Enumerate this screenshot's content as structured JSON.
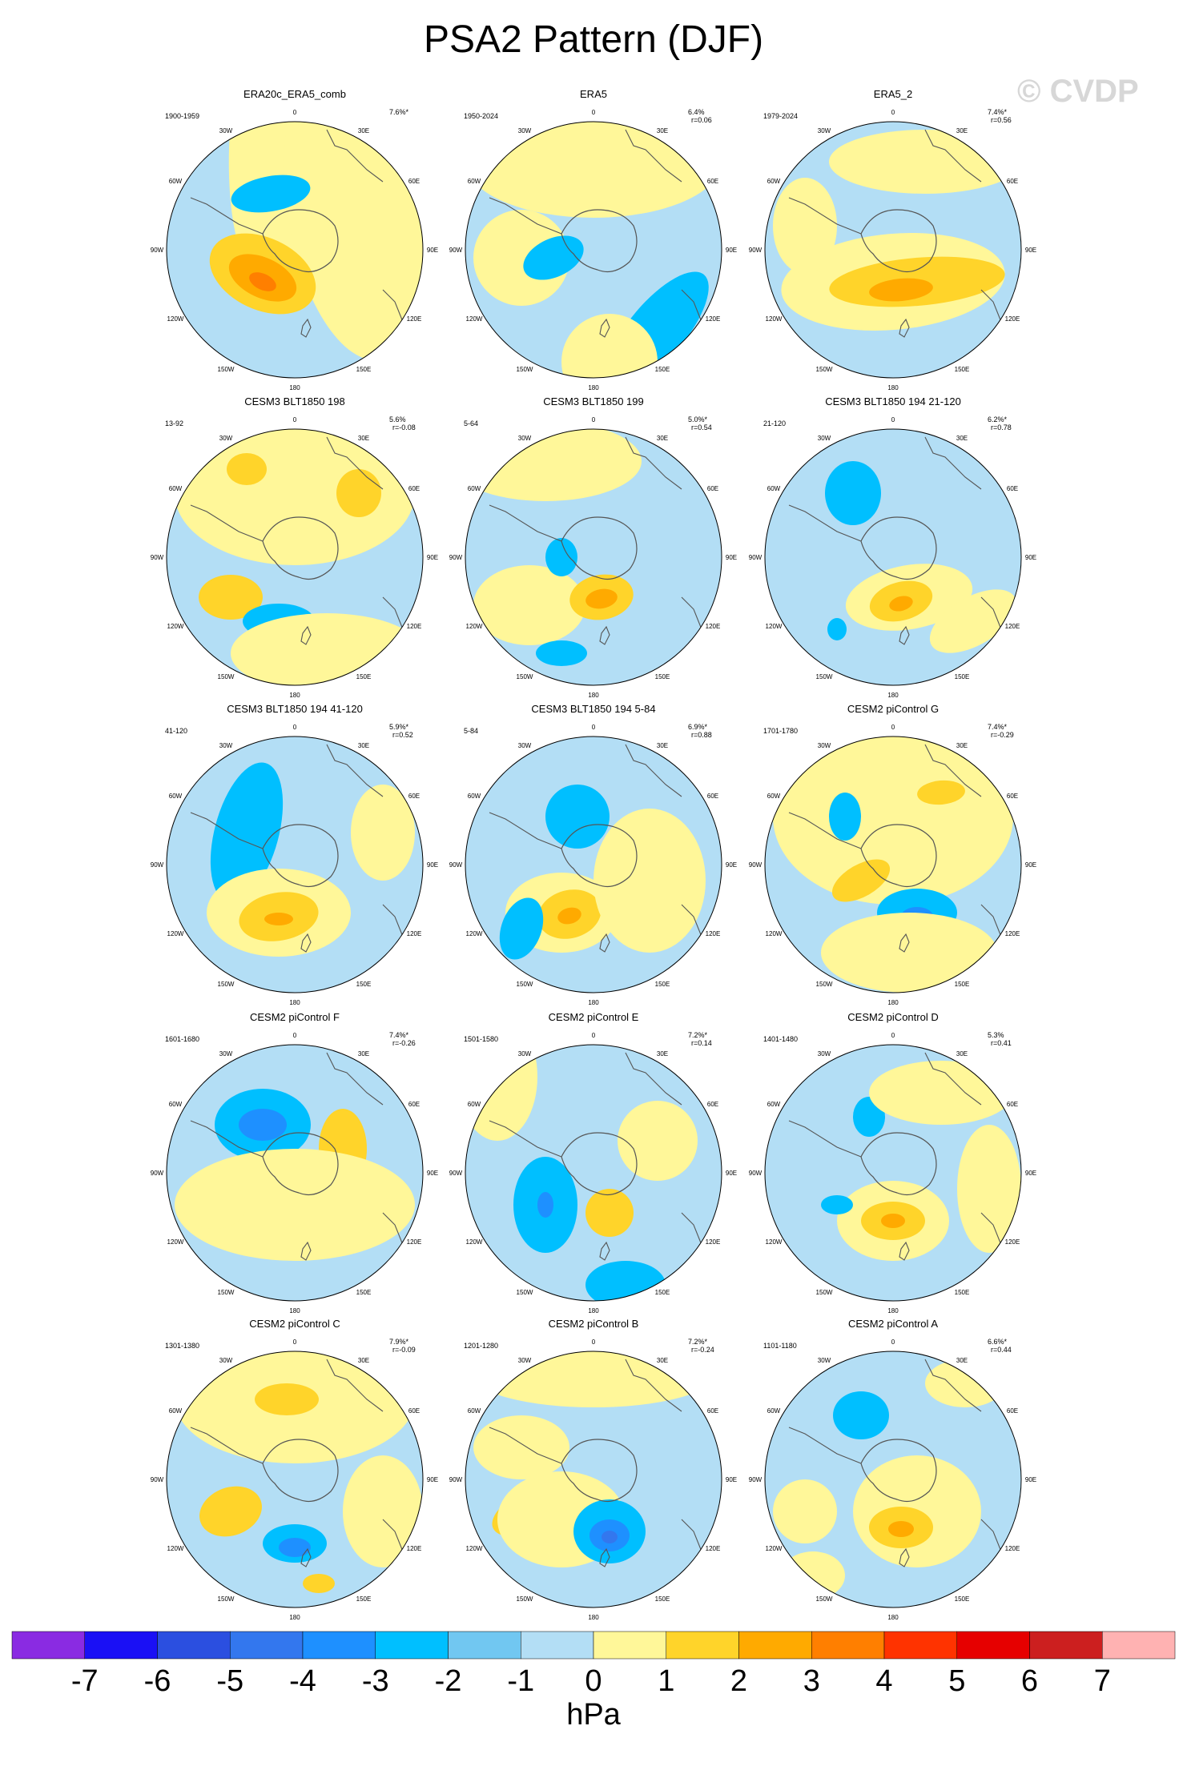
{
  "title": "PSA2 Pattern (DJF)",
  "watermark": "© CVDP",
  "colors": {
    "background_ocean": "#b3def5",
    "positive_weak": "#fff799",
    "coast": "#555555"
  },
  "longitude_labels": [
    "0",
    "30E",
    "60E",
    "90E",
    "120E",
    "150E",
    "180",
    "150W",
    "120W",
    "90W",
    "60W",
    "30W"
  ],
  "panels": [
    {
      "title": "ERA20c_ERA5_comb",
      "period": "1900-1959",
      "pct": "7.6%*",
      "r": ""
    },
    {
      "title": "ERA5",
      "period": "1950-2024",
      "pct": "6.4%",
      "r": "r=0.06"
    },
    {
      "title": "ERA5_2",
      "period": "1979-2024",
      "pct": "7.4%*",
      "r": "r=0.56"
    },
    {
      "title": "CESM3 BLT1850 198",
      "period": "13-92",
      "pct": "5.6%",
      "r": "r=-0.08"
    },
    {
      "title": "CESM3 BLT1850 199",
      "period": "5-64",
      "pct": "5.0%*",
      "r": "r=0.54"
    },
    {
      "title": "CESM3 BLT1850 194 21-120",
      "period": "21-120",
      "pct": "6.2%*",
      "r": "r=0.78"
    },
    {
      "title": "CESM3 BLT1850 194 41-120",
      "period": "41-120",
      "pct": "5.9%*",
      "r": "r=0.52"
    },
    {
      "title": "CESM3 BLT1850 194 5-84",
      "period": "5-84",
      "pct": "6.9%*",
      "r": "r=0.88"
    },
    {
      "title": "CESM2 piControl G",
      "period": "1701-1780",
      "pct": "7.4%*",
      "r": "r=-0.29"
    },
    {
      "title": "CESM2 piControl F",
      "period": "1601-1680",
      "pct": "7.4%*",
      "r": "r=-0.26"
    },
    {
      "title": "CESM2 piControl E",
      "period": "1501-1580",
      "pct": "7.2%*",
      "r": "r=0.14"
    },
    {
      "title": "CESM2 piControl D",
      "period": "1401-1480",
      "pct": "5.3%",
      "r": "r=0.41"
    },
    {
      "title": "CESM2 piControl C",
      "period": "1301-1380",
      "pct": "7.9%*",
      "r": "r=-0.09"
    },
    {
      "title": "CESM2 piControl B",
      "period": "1201-1280",
      "pct": "7.2%*",
      "r": "r=-0.24"
    },
    {
      "title": "CESM2 piControl A",
      "period": "1101-1180",
      "pct": "6.6%*",
      "r": "r=0.44"
    }
  ],
  "colorbar": {
    "unit": "hPa",
    "ticks": [
      "-7",
      "-6",
      "-5",
      "-4",
      "-3",
      "-2",
      "-1",
      "0",
      "1",
      "2",
      "3",
      "4",
      "5",
      "6",
      "7"
    ],
    "colors": [
      "#8a2be2",
      "#1a10f5",
      "#2b4fe0",
      "#3377ee",
      "#1e90ff",
      "#00bfff",
      "#71c7f1",
      "#b3def5",
      "#fff799",
      "#ffd42a",
      "#ffaa00",
      "#ff7f00",
      "#ff3300",
      "#e60000",
      "#cc1f1f",
      "#ffb2b2"
    ]
  }
}
